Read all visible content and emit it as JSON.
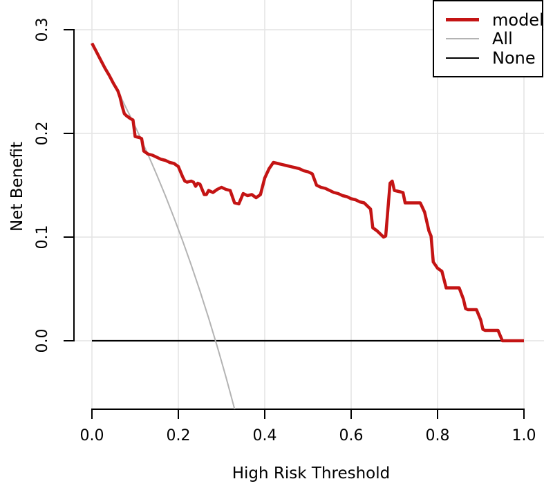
{
  "chart_data": {
    "type": "line",
    "title": "",
    "xlabel": "High Risk Threshold",
    "ylabel": "Net Benefit",
    "xlim": [
      0.0,
      1.0
    ],
    "ylim": [
      -0.066,
      0.329
    ],
    "grid": true,
    "grid_color": "#e4e4e4",
    "axis_color": "#000000",
    "x_tick_values": [
      0.0,
      0.2,
      0.4,
      0.6,
      0.8,
      1.0
    ],
    "x_tick_labels": [
      "0.0",
      "0.2",
      "0.4",
      "0.6",
      "0.8",
      "1.0"
    ],
    "y_tick_values": [
      0.0,
      0.1,
      0.2,
      0.3
    ],
    "y_tick_labels": [
      "0.0",
      "0.1",
      "0.2",
      "0.3"
    ],
    "legend": {
      "position": "top-right",
      "items": [
        {
          "label": "model",
          "color": "#c41414",
          "line_width": 5
        },
        {
          "label": "All",
          "color": "#b3b3b3",
          "line_width": 2
        },
        {
          "label": "None",
          "color": "#000000",
          "line_width": 2
        }
      ]
    },
    "series": [
      {
        "name": "model",
        "color": "#c41414",
        "line_width": 4.5,
        "points": [
          [
            0.0,
            0.287
          ],
          [
            0.01,
            0.279
          ],
          [
            0.02,
            0.271
          ],
          [
            0.03,
            0.263
          ],
          [
            0.04,
            0.256
          ],
          [
            0.05,
            0.248
          ],
          [
            0.06,
            0.241
          ],
          [
            0.065,
            0.235
          ],
          [
            0.07,
            0.226
          ],
          [
            0.075,
            0.219
          ],
          [
            0.08,
            0.217
          ],
          [
            0.09,
            0.214
          ],
          [
            0.095,
            0.213
          ],
          [
            0.1,
            0.197
          ],
          [
            0.11,
            0.196
          ],
          [
            0.115,
            0.195
          ],
          [
            0.12,
            0.183
          ],
          [
            0.13,
            0.18
          ],
          [
            0.14,
            0.179
          ],
          [
            0.15,
            0.177
          ],
          [
            0.16,
            0.175
          ],
          [
            0.17,
            0.174
          ],
          [
            0.18,
            0.172
          ],
          [
            0.19,
            0.171
          ],
          [
            0.2,
            0.168
          ],
          [
            0.21,
            0.158
          ],
          [
            0.215,
            0.154
          ],
          [
            0.22,
            0.153
          ],
          [
            0.23,
            0.154
          ],
          [
            0.235,
            0.153
          ],
          [
            0.24,
            0.149
          ],
          [
            0.245,
            0.152
          ],
          [
            0.25,
            0.151
          ],
          [
            0.26,
            0.141
          ],
          [
            0.265,
            0.141
          ],
          [
            0.27,
            0.145
          ],
          [
            0.28,
            0.143
          ],
          [
            0.29,
            0.146
          ],
          [
            0.3,
            0.148
          ],
          [
            0.31,
            0.146
          ],
          [
            0.32,
            0.145
          ],
          [
            0.33,
            0.133
          ],
          [
            0.34,
            0.132
          ],
          [
            0.35,
            0.142
          ],
          [
            0.36,
            0.14
          ],
          [
            0.37,
            0.141
          ],
          [
            0.38,
            0.138
          ],
          [
            0.39,
            0.141
          ],
          [
            0.4,
            0.157
          ],
          [
            0.41,
            0.166
          ],
          [
            0.42,
            0.172
          ],
          [
            0.43,
            0.171
          ],
          [
            0.44,
            0.17
          ],
          [
            0.45,
            0.169
          ],
          [
            0.46,
            0.168
          ],
          [
            0.47,
            0.167
          ],
          [
            0.48,
            0.166
          ],
          [
            0.49,
            0.164
          ],
          [
            0.5,
            0.163
          ],
          [
            0.51,
            0.161
          ],
          [
            0.52,
            0.15
          ],
          [
            0.53,
            0.148
          ],
          [
            0.54,
            0.147
          ],
          [
            0.55,
            0.145
          ],
          [
            0.56,
            0.143
          ],
          [
            0.57,
            0.142
          ],
          [
            0.58,
            0.14
          ],
          [
            0.59,
            0.139
          ],
          [
            0.6,
            0.137
          ],
          [
            0.61,
            0.136
          ],
          [
            0.62,
            0.134
          ],
          [
            0.63,
            0.133
          ],
          [
            0.64,
            0.129
          ],
          [
            0.645,
            0.127
          ],
          [
            0.65,
            0.109
          ],
          [
            0.66,
            0.106
          ],
          [
            0.67,
            0.102
          ],
          [
            0.675,
            0.1
          ],
          [
            0.68,
            0.101
          ],
          [
            0.69,
            0.152
          ],
          [
            0.695,
            0.154
          ],
          [
            0.7,
            0.145
          ],
          [
            0.71,
            0.144
          ],
          [
            0.72,
            0.143
          ],
          [
            0.725,
            0.133
          ],
          [
            0.73,
            0.133
          ],
          [
            0.76,
            0.133
          ],
          [
            0.77,
            0.124
          ],
          [
            0.78,
            0.106
          ],
          [
            0.785,
            0.101
          ],
          [
            0.79,
            0.076
          ],
          [
            0.8,
            0.07
          ],
          [
            0.81,
            0.067
          ],
          [
            0.82,
            0.051
          ],
          [
            0.83,
            0.051
          ],
          [
            0.85,
            0.051
          ],
          [
            0.86,
            0.04
          ],
          [
            0.865,
            0.031
          ],
          [
            0.87,
            0.03
          ],
          [
            0.89,
            0.03
          ],
          [
            0.9,
            0.02
          ],
          [
            0.905,
            0.011
          ],
          [
            0.91,
            0.01
          ],
          [
            0.94,
            0.01
          ],
          [
            0.95,
            0.0
          ],
          [
            1.0,
            0.0
          ]
        ]
      },
      {
        "name": "All",
        "color": "#b3b3b3",
        "line_width": 2,
        "prevalence": 0.286,
        "points": [
          [
            0.0,
            0.286
          ],
          [
            0.01,
            0.2788
          ],
          [
            0.02,
            0.2714
          ],
          [
            0.03,
            0.2639
          ],
          [
            0.04,
            0.2563
          ],
          [
            0.05,
            0.2484
          ],
          [
            0.06,
            0.2404
          ],
          [
            0.07,
            0.2323
          ],
          [
            0.08,
            0.2239
          ],
          [
            0.09,
            0.2154
          ],
          [
            0.1,
            0.2067
          ],
          [
            0.11,
            0.1978
          ],
          [
            0.12,
            0.1886
          ],
          [
            0.13,
            0.1793
          ],
          [
            0.14,
            0.1698
          ],
          [
            0.15,
            0.16
          ],
          [
            0.16,
            0.15
          ],
          [
            0.17,
            0.1398
          ],
          [
            0.18,
            0.1293
          ],
          [
            0.19,
            0.1185
          ],
          [
            0.2,
            0.1075
          ],
          [
            0.21,
            0.0962
          ],
          [
            0.22,
            0.0846
          ],
          [
            0.23,
            0.0727
          ],
          [
            0.24,
            0.0605
          ],
          [
            0.25,
            0.048
          ],
          [
            0.26,
            0.0351
          ],
          [
            0.27,
            0.0219
          ],
          [
            0.28,
            0.0083
          ],
          [
            0.29,
            -0.0056
          ],
          [
            0.3,
            -0.02
          ],
          [
            0.31,
            -0.0348
          ],
          [
            0.32,
            -0.05
          ],
          [
            0.33,
            -0.0657
          ],
          [
            0.335,
            -0.0737
          ]
        ]
      },
      {
        "name": "None",
        "color": "#000000",
        "line_width": 2.2,
        "points": [
          [
            0.0,
            0.0
          ],
          [
            1.0,
            0.0
          ]
        ]
      }
    ]
  }
}
